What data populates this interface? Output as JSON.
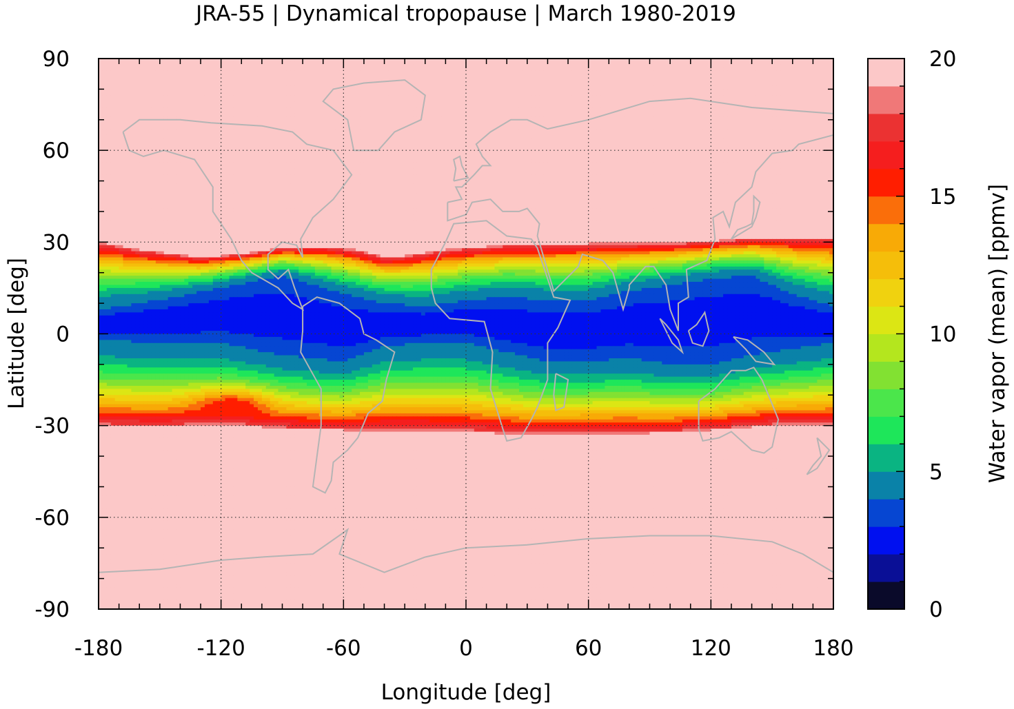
{
  "chart_data": {
    "type": "heatmap",
    "title": "JRA-55 | Dynamical tropopause | March 1980-2019",
    "xlabel": "Longitude [deg]",
    "ylabel": "Latitude [deg]",
    "xlim": [
      -180,
      180
    ],
    "ylim": [
      -90,
      90
    ],
    "x_ticks": [
      "-180",
      "-120",
      "-60",
      "0",
      "60",
      "120",
      "180"
    ],
    "y_ticks": [
      "90",
      "60",
      "30",
      "0",
      "-30",
      "-60",
      "-90"
    ],
    "x_tick_values": [
      -180,
      -120,
      -60,
      0,
      60,
      120,
      180
    ],
    "y_tick_values": [
      90,
      60,
      30,
      0,
      -30,
      -60,
      -90
    ],
    "grid": true,
    "colorbar": {
      "label": "Water vapor (mean) [ppmv]",
      "range": [
        0,
        20
      ],
      "ticks": [
        "0",
        "5",
        "10",
        "15",
        "20"
      ],
      "tick_values": [
        0,
        5,
        10,
        15,
        20
      ],
      "levels": [
        {
          "from": 0,
          "to": 1,
          "color": "#0a0a2a"
        },
        {
          "from": 1,
          "to": 2,
          "color": "#0a0f96"
        },
        {
          "from": 2,
          "to": 3,
          "color": "#0010f0"
        },
        {
          "from": 3,
          "to": 4,
          "color": "#0646d2"
        },
        {
          "from": 4,
          "to": 5,
          "color": "#0a82a8"
        },
        {
          "from": 5,
          "to": 6,
          "color": "#0ab482"
        },
        {
          "from": 6,
          "to": 7,
          "color": "#1ee65a"
        },
        {
          "from": 7,
          "to": 8,
          "color": "#4be64b"
        },
        {
          "from": 8,
          "to": 9,
          "color": "#82e132"
        },
        {
          "from": 9,
          "to": 10,
          "color": "#b4e61e"
        },
        {
          "from": 10,
          "to": 11,
          "color": "#dce614"
        },
        {
          "from": 11,
          "to": 12,
          "color": "#f0d20f"
        },
        {
          "from": 12,
          "to": 13,
          "color": "#f5be0a"
        },
        {
          "from": 13,
          "to": 14,
          "color": "#f8aa06"
        },
        {
          "from": 14,
          "to": 15,
          "color": "#fa6e0a"
        },
        {
          "from": 15,
          "to": 16,
          "color": "#ff1e00"
        },
        {
          "from": 16,
          "to": 17,
          "color": "#f51e1e"
        },
        {
          "from": 17,
          "to": 18,
          "color": "#eb3232"
        },
        {
          "from": 18,
          "to": 19,
          "color": "#f07878"
        },
        {
          "from": 19,
          "to": 20,
          "color": "#fcc8c8"
        }
      ]
    },
    "band": {
      "outside_value": 20,
      "north_edge_lat": [
        [
          -180,
          30
        ],
        [
          -160,
          27.5
        ],
        [
          -130,
          25
        ],
        [
          -110,
          26
        ],
        [
          -90,
          28
        ],
        [
          -70,
          28.5
        ],
        [
          -55,
          27.5
        ],
        [
          -40,
          25
        ],
        [
          -30,
          25.5
        ],
        [
          -10,
          27.5
        ],
        [
          20,
          29
        ],
        [
          60,
          29.5
        ],
        [
          100,
          29.5
        ],
        [
          125,
          30.5
        ],
        [
          150,
          31.5
        ],
        [
          180,
          31
        ]
      ],
      "south_edge_lat": [
        [
          -180,
          -30
        ],
        [
          -150,
          -30.5
        ],
        [
          -120,
          -29.5
        ],
        [
          -90,
          -31
        ],
        [
          -60,
          -31.5
        ],
        [
          -30,
          -31.5
        ],
        [
          0,
          -32
        ],
        [
          30,
          -33
        ],
        [
          60,
          -32.5
        ],
        [
          90,
          -32.5
        ],
        [
          120,
          -31.5
        ],
        [
          150,
          -30
        ],
        [
          180,
          -30
        ]
      ],
      "core_center_lat": [
        [
          -180,
          3
        ],
        [
          -150,
          4
        ],
        [
          -120,
          6
        ],
        [
          -90,
          6
        ],
        [
          -60,
          2
        ],
        [
          -40,
          3
        ],
        [
          -20,
          3
        ],
        [
          0,
          4
        ],
        [
          20,
          3
        ],
        [
          40,
          1
        ],
        [
          60,
          1
        ],
        [
          80,
          3
        ],
        [
          100,
          3
        ],
        [
          120,
          4
        ],
        [
          140,
          6
        ],
        [
          160,
          4
        ],
        [
          180,
          3
        ]
      ],
      "core_half_width_deg": [
        [
          -180,
          5
        ],
        [
          -120,
          9
        ],
        [
          -90,
          13
        ],
        [
          -60,
          11
        ],
        [
          -40,
          7
        ],
        [
          -20,
          6
        ],
        [
          0,
          7
        ],
        [
          20,
          9
        ],
        [
          40,
          10
        ],
        [
          60,
          10
        ],
        [
          80,
          11
        ],
        [
          100,
          13
        ],
        [
          120,
          14
        ],
        [
          140,
          13
        ],
        [
          160,
          9
        ],
        [
          180,
          6
        ]
      ],
      "moist_bulge": {
        "lon": -115,
        "lat": -24,
        "value": 16
      }
    },
    "coastline_color": "#b4b4b4"
  }
}
